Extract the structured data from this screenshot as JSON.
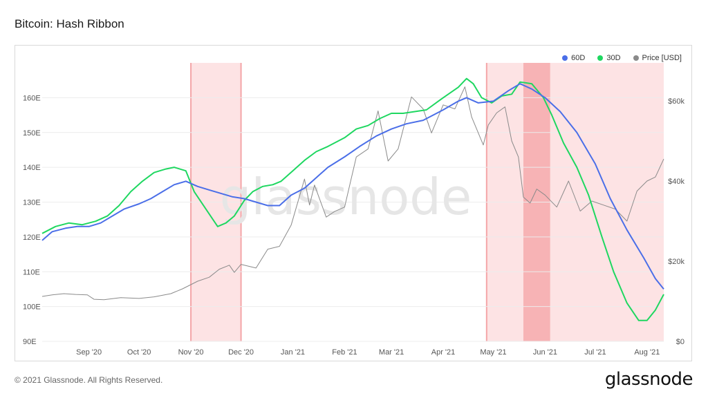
{
  "page": {
    "title": "Bitcoin: Hash Ribbon",
    "footer": "© 2021 Glassnode. All Rights Reserved.",
    "brand": "glassnode",
    "watermark": "glassnode"
  },
  "colors": {
    "ma60": "#4a6ee8",
    "ma30": "#1ed760",
    "price": "#8a8a8a",
    "capitulation_light": "#fde3e4",
    "capitulation_dark": "#f7b3b5",
    "capitulation_line": "#f4a5a8"
  },
  "chart_data": {
    "type": "line",
    "title": "Bitcoin: Hash Ribbon",
    "x_tick_labels": [
      "Sep '20",
      "Oct '20",
      "Nov '20",
      "Dec '20",
      "Jan '21",
      "Feb '21",
      "Mar '21",
      "Apr '21",
      "May '21",
      "Jun '21",
      "Jul '21",
      "Aug '21"
    ],
    "x_ticks_dates": [
      "2020-09-01",
      "2020-10-01",
      "2020-11-01",
      "2020-12-01",
      "2021-01-01",
      "2021-02-01",
      "2021-03-01",
      "2021-04-01",
      "2021-05-01",
      "2021-06-01",
      "2021-07-01",
      "2021-08-01"
    ],
    "xlim": [
      "2020-08-04",
      "2021-08-11"
    ],
    "left_axis": {
      "ticks": [
        90,
        100,
        110,
        120,
        130,
        140,
        150,
        160
      ],
      "tick_labels": [
        "90E",
        "100E",
        "110E",
        "120E",
        "130E",
        "140E",
        "150E",
        "160E"
      ],
      "ylim": [
        90,
        170
      ],
      "unit": "E"
    },
    "right_axis": {
      "ticks": [
        0,
        20000,
        40000,
        60000
      ],
      "tick_labels": [
        "$0",
        "$20k",
        "$40k",
        "$60k"
      ],
      "ylim": [
        0,
        60000
      ]
    },
    "legend": [
      "60D",
      "30D",
      "Price [USD]"
    ],
    "legend_position": "top-right",
    "capitulation_regions": [
      {
        "start": "2020-11-01",
        "end": "2020-12-01",
        "intensity": "light"
      },
      {
        "start": "2021-04-27",
        "end": "2021-08-11",
        "intensity": "light"
      },
      {
        "start": "2021-05-19",
        "end": "2021-06-04",
        "intensity": "dark"
      }
    ],
    "series": [
      {
        "name": "60D",
        "axis": "left",
        "points": [
          [
            "2020-08-04",
            119.0
          ],
          [
            "2020-08-10",
            121.5
          ],
          [
            "2020-08-18",
            122.5
          ],
          [
            "2020-08-25",
            123.0
          ],
          [
            "2020-09-01",
            123.0
          ],
          [
            "2020-09-08",
            124.0
          ],
          [
            "2020-09-15",
            126.0
          ],
          [
            "2020-09-22",
            128.0
          ],
          [
            "2020-10-01",
            129.5
          ],
          [
            "2020-10-08",
            131.0
          ],
          [
            "2020-10-15",
            133.0
          ],
          [
            "2020-10-22",
            135.0
          ],
          [
            "2020-10-29",
            136.0
          ],
          [
            "2020-11-05",
            134.5
          ],
          [
            "2020-11-12",
            133.5
          ],
          [
            "2020-11-19",
            132.5
          ],
          [
            "2020-11-26",
            131.5
          ],
          [
            "2020-12-03",
            131.0
          ],
          [
            "2020-12-10",
            130.0
          ],
          [
            "2020-12-17",
            129.0
          ],
          [
            "2020-12-24",
            129.0
          ],
          [
            "2020-12-31",
            132.0
          ],
          [
            "2021-01-08",
            134.0
          ],
          [
            "2021-01-15",
            137.0
          ],
          [
            "2021-01-22",
            140.0
          ],
          [
            "2021-02-01",
            143.0
          ],
          [
            "2021-02-10",
            146.0
          ],
          [
            "2021-02-20",
            149.0
          ],
          [
            "2021-03-01",
            151.0
          ],
          [
            "2021-03-10",
            152.5
          ],
          [
            "2021-03-20",
            153.5
          ],
          [
            "2021-04-01",
            156.5
          ],
          [
            "2021-04-10",
            159.0
          ],
          [
            "2021-04-15",
            160.0
          ],
          [
            "2021-04-22",
            158.5
          ],
          [
            "2021-05-01",
            159.0
          ],
          [
            "2021-05-10",
            162.0
          ],
          [
            "2021-05-17",
            164.0
          ],
          [
            "2021-05-24",
            162.5
          ],
          [
            "2021-06-01",
            160.0
          ],
          [
            "2021-06-10",
            156.0
          ],
          [
            "2021-06-20",
            150.0
          ],
          [
            "2021-07-01",
            141.0
          ],
          [
            "2021-07-10",
            131.0
          ],
          [
            "2021-07-20",
            122.0
          ],
          [
            "2021-07-30",
            114.0
          ],
          [
            "2021-08-06",
            108.0
          ],
          [
            "2021-08-11",
            105.0
          ]
        ]
      },
      {
        "name": "30D",
        "axis": "left",
        "points": [
          [
            "2020-08-04",
            121.0
          ],
          [
            "2020-08-12",
            123.0
          ],
          [
            "2020-08-20",
            124.0
          ],
          [
            "2020-08-28",
            123.5
          ],
          [
            "2020-09-05",
            124.5
          ],
          [
            "2020-09-12",
            126.0
          ],
          [
            "2020-09-19",
            129.0
          ],
          [
            "2020-09-26",
            133.0
          ],
          [
            "2020-10-03",
            136.0
          ],
          [
            "2020-10-10",
            138.5
          ],
          [
            "2020-10-17",
            139.5
          ],
          [
            "2020-10-22",
            140.0
          ],
          [
            "2020-10-29",
            139.0
          ],
          [
            "2020-11-03",
            133.0
          ],
          [
            "2020-11-10",
            128.0
          ],
          [
            "2020-11-17",
            123.0
          ],
          [
            "2020-11-22",
            124.0
          ],
          [
            "2020-11-27",
            126.0
          ],
          [
            "2020-12-03",
            130.5
          ],
          [
            "2020-12-08",
            133.0
          ],
          [
            "2020-12-14",
            134.5
          ],
          [
            "2020-12-20",
            135.0
          ],
          [
            "2020-12-25",
            136.0
          ],
          [
            "2021-01-01",
            139.0
          ],
          [
            "2021-01-08",
            142.0
          ],
          [
            "2021-01-15",
            144.5
          ],
          [
            "2021-01-22",
            146.0
          ],
          [
            "2021-02-01",
            148.5
          ],
          [
            "2021-02-08",
            151.0
          ],
          [
            "2021-02-15",
            152.0
          ],
          [
            "2021-02-22",
            154.0
          ],
          [
            "2021-03-01",
            155.5
          ],
          [
            "2021-03-08",
            155.5
          ],
          [
            "2021-03-15",
            156.0
          ],
          [
            "2021-03-22",
            156.5
          ],
          [
            "2021-04-01",
            160.0
          ],
          [
            "2021-04-10",
            163.0
          ],
          [
            "2021-04-15",
            165.5
          ],
          [
            "2021-04-19",
            164.0
          ],
          [
            "2021-04-24",
            160.0
          ],
          [
            "2021-04-30",
            158.5
          ],
          [
            "2021-05-06",
            160.5
          ],
          [
            "2021-05-12",
            161.0
          ],
          [
            "2021-05-17",
            164.5
          ],
          [
            "2021-05-24",
            164.0
          ],
          [
            "2021-05-31",
            160.0
          ],
          [
            "2021-06-05",
            155.0
          ],
          [
            "2021-06-12",
            147.0
          ],
          [
            "2021-06-20",
            140.0
          ],
          [
            "2021-06-27",
            132.0
          ],
          [
            "2021-07-05",
            120.0
          ],
          [
            "2021-07-12",
            110.0
          ],
          [
            "2021-07-20",
            101.0
          ],
          [
            "2021-07-27",
            96.0
          ],
          [
            "2021-08-01",
            96.0
          ],
          [
            "2021-08-06",
            99.0
          ],
          [
            "2021-08-11",
            103.5
          ]
        ]
      },
      {
        "name": "Price [USD]",
        "axis": "right",
        "points": [
          [
            "2020-08-04",
            11200
          ],
          [
            "2020-08-10",
            11600
          ],
          [
            "2020-08-17",
            11900
          ],
          [
            "2020-08-24",
            11700
          ],
          [
            "2020-08-31",
            11600
          ],
          [
            "2020-09-04",
            10500
          ],
          [
            "2020-09-10",
            10400
          ],
          [
            "2020-09-20",
            10900
          ],
          [
            "2020-10-01",
            10700
          ],
          [
            "2020-10-10",
            11100
          ],
          [
            "2020-10-20",
            11900
          ],
          [
            "2020-10-27",
            13100
          ],
          [
            "2020-11-05",
            15000
          ],
          [
            "2020-11-12",
            16000
          ],
          [
            "2020-11-18",
            18000
          ],
          [
            "2020-11-24",
            19000
          ],
          [
            "2020-11-27",
            17200
          ],
          [
            "2020-12-01",
            19200
          ],
          [
            "2020-12-10",
            18300
          ],
          [
            "2020-12-17",
            23000
          ],
          [
            "2020-12-24",
            23700
          ],
          [
            "2020-12-31",
            29000
          ],
          [
            "2021-01-08",
            40500
          ],
          [
            "2021-01-11",
            34000
          ],
          [
            "2021-01-14",
            39000
          ],
          [
            "2021-01-21",
            31000
          ],
          [
            "2021-01-26",
            32400
          ],
          [
            "2021-02-01",
            33500
          ],
          [
            "2021-02-08",
            46000
          ],
          [
            "2021-02-15",
            48000
          ],
          [
            "2021-02-21",
            57500
          ],
          [
            "2021-02-27",
            45000
          ],
          [
            "2021-03-05",
            48000
          ],
          [
            "2021-03-13",
            61000
          ],
          [
            "2021-03-20",
            58000
          ],
          [
            "2021-03-25",
            52000
          ],
          [
            "2021-04-01",
            59000
          ],
          [
            "2021-04-08",
            58000
          ],
          [
            "2021-04-14",
            63500
          ],
          [
            "2021-04-18",
            56000
          ],
          [
            "2021-04-25",
            49000
          ],
          [
            "2021-04-28",
            54000
          ],
          [
            "2021-05-03",
            57000
          ],
          [
            "2021-05-08",
            58500
          ],
          [
            "2021-05-12",
            50000
          ],
          [
            "2021-05-16",
            46000
          ],
          [
            "2021-05-19",
            36000
          ],
          [
            "2021-05-23",
            34500
          ],
          [
            "2021-05-27",
            38000
          ],
          [
            "2021-06-01",
            36500
          ],
          [
            "2021-06-08",
            33500
          ],
          [
            "2021-06-15",
            40000
          ],
          [
            "2021-06-22",
            32500
          ],
          [
            "2021-06-29",
            35000
          ],
          [
            "2021-07-06",
            34000
          ],
          [
            "2021-07-13",
            33000
          ],
          [
            "2021-07-20",
            30000
          ],
          [
            "2021-07-26",
            37500
          ],
          [
            "2021-08-01",
            40000
          ],
          [
            "2021-08-06",
            41000
          ],
          [
            "2021-08-11",
            45500
          ]
        ]
      }
    ]
  }
}
